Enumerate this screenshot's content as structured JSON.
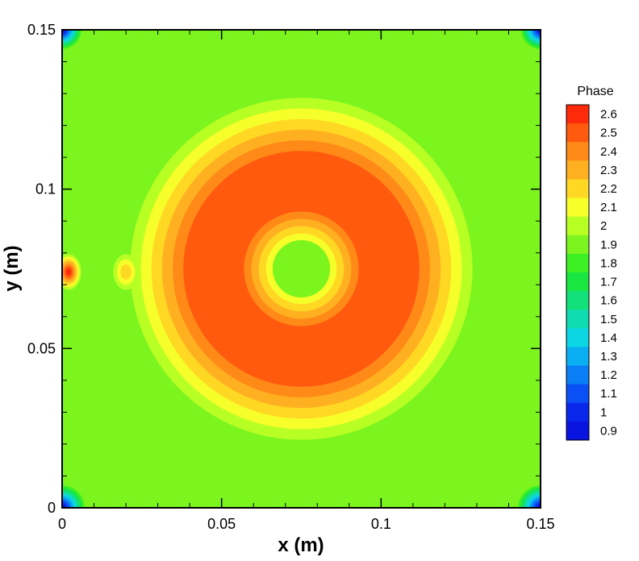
{
  "chart_data": {
    "type": "heatmap",
    "xlabel": "x (m)",
    "ylabel": "y (m)",
    "xlim": [
      0,
      0.15
    ],
    "ylim": [
      0,
      0.15
    ],
    "x_ticks": [
      "0",
      "0.05",
      "0.1",
      "0.15"
    ],
    "y_ticks": [
      "0",
      "0.05",
      "0.1",
      "0.15"
    ],
    "x_tick_values": [
      0,
      0.05,
      0.1,
      0.15
    ],
    "y_tick_values": [
      0,
      0.05,
      0.1,
      0.15
    ],
    "grid": false,
    "legend": {
      "title": "Phase",
      "placement": "right",
      "levels": [
        "2.6",
        "2.5",
        "2.4",
        "2.3",
        "2.2",
        "2.1",
        "2",
        "1.9",
        "1.8",
        "1.7",
        "1.6",
        "1.5",
        "1.4",
        "1.3",
        "1.2",
        "1.1",
        "1",
        "0.9"
      ],
      "colors": [
        "#ff2a0a",
        "#ff5a0e",
        "#ff8a18",
        "#ffb020",
        "#ffd824",
        "#f6ff2a",
        "#b8ff24",
        "#7cf41e",
        "#3cf024",
        "#1ae642",
        "#12e07a",
        "#10dcb2",
        "#0cd6e4",
        "#0aaef2",
        "#0a7ef4",
        "#0a50f4",
        "#0a28ec",
        "#0a14e0"
      ]
    },
    "field": {
      "background_phase": 1.9,
      "features": [
        {
          "type": "ring",
          "center": [
            0.075,
            0.075
          ],
          "outer_radius": 0.037,
          "inner_radius": 0.018,
          "peak_phase": 2.5
        },
        {
          "type": "spot",
          "center": [
            0.075,
            0.075
          ],
          "radius": 0.009,
          "phase": 1.85
        },
        {
          "type": "spot",
          "center": [
            0.002,
            0.074
          ],
          "radius": 0.004,
          "phase": 2.6
        },
        {
          "type": "spot",
          "center": [
            0.02,
            0.074
          ],
          "radius": 0.004,
          "phase": 2.2
        },
        {
          "type": "corner",
          "center": [
            0.0,
            0.0
          ],
          "radius": 0.007,
          "phase": 0.9
        },
        {
          "type": "corner",
          "center": [
            0.15,
            0.0
          ],
          "radius": 0.007,
          "phase": 0.9
        },
        {
          "type": "corner",
          "center": [
            0.0,
            0.15
          ],
          "radius": 0.006,
          "phase": 0.9
        },
        {
          "type": "corner",
          "center": [
            0.15,
            0.15
          ],
          "radius": 0.006,
          "phase": 0.9
        }
      ]
    }
  }
}
